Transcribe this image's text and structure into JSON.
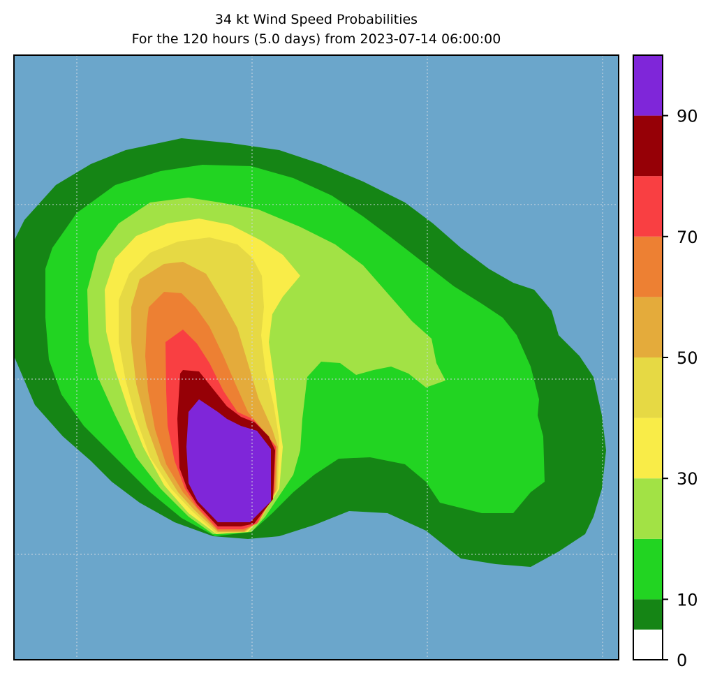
{
  "chart_data": {
    "type": "heatmap",
    "title": "34 kt Wind Speed Probabilities",
    "subtitle": "For the 120 hours (5.0 days) from 2023-07-14 06:00:00",
    "grid": true,
    "colors": {
      "ocean": "#6ba6cb",
      "grid": "#d0d8e0"
    },
    "colorbar": {
      "min": 0,
      "max": 100,
      "tick_values": [
        0,
        10,
        30,
        50,
        70,
        90
      ],
      "tick_labels": [
        "0",
        "10",
        "30",
        "50",
        "70",
        "90"
      ],
      "bins": [
        {
          "from": 0,
          "to": 5,
          "color": "#ffffff"
        },
        {
          "from": 5,
          "to": 10,
          "color": "#158515"
        },
        {
          "from": 10,
          "to": 20,
          "color": "#22d422"
        },
        {
          "from": 20,
          "to": 30,
          "color": "#a2e245"
        },
        {
          "from": 30,
          "to": 40,
          "color": "#f9ec48"
        },
        {
          "from": 40,
          "to": 50,
          "color": "#e6d944"
        },
        {
          "from": 50,
          "to": 60,
          "color": "#e4ab3b"
        },
        {
          "from": 60,
          "to": 70,
          "color": "#ed8033"
        },
        {
          "from": 70,
          "to": 80,
          "color": "#f93f42"
        },
        {
          "from": 80,
          "to": 90,
          "color": "#960006"
        },
        {
          "from": 90,
          "to": 100,
          "color": "#7f26d9"
        }
      ]
    }
  }
}
